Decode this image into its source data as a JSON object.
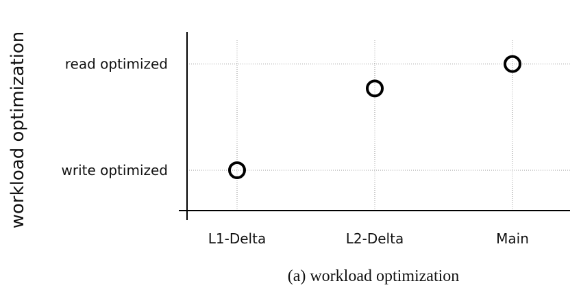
{
  "chart_data": {
    "type": "scatter",
    "title": "",
    "caption": "(a) workload optimization",
    "ylabel": "workload optimization",
    "xlabel": "",
    "categories": [
      "L1-Delta",
      "L2-Delta",
      "Main"
    ],
    "y_ticks": [
      {
        "label": "write optimized",
        "value": 0
      },
      {
        "label": "read optimized",
        "value": 1
      }
    ],
    "ylim": [
      -0.38,
      1.3
    ],
    "points": [
      {
        "x": "L1-Delta",
        "y": 0.0
      },
      {
        "x": "L2-Delta",
        "y": 0.77
      },
      {
        "x": "Main",
        "y": 1.0
      }
    ],
    "grid": true,
    "marker": "open-circle",
    "colors": {
      "marker": "#000000",
      "axis": "#000000",
      "grid": "#9a9a9a"
    }
  }
}
